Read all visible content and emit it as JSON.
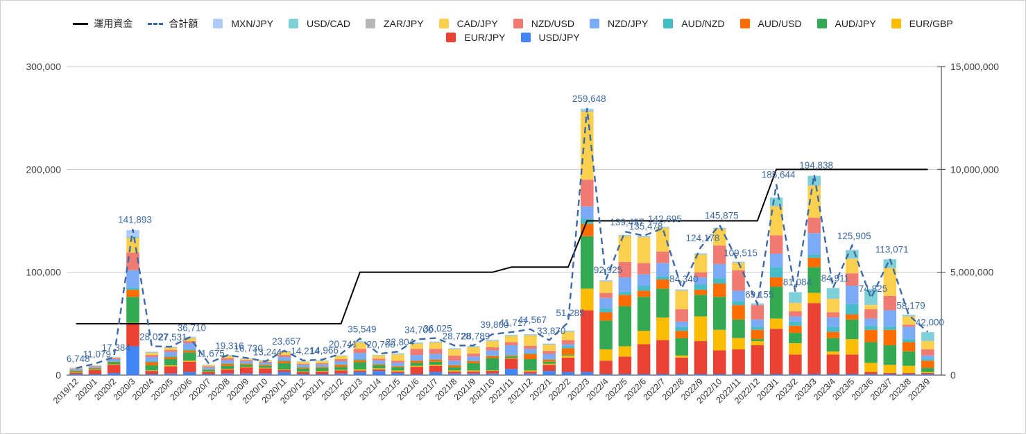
{
  "chart_data": {
    "type": "bar",
    "stacked": true,
    "title": "",
    "xlabel": "",
    "ylabel": "",
    "ylim": [
      0,
      300000
    ],
    "y2lim": [
      0,
      15000000
    ],
    "y_ticks": [
      "0",
      "100,000",
      "200,000",
      "300,000"
    ],
    "y2_ticks": [
      "0",
      "5,000,000",
      "10,000,000",
      "15,000,000"
    ],
    "grid": true,
    "legend_position": "top",
    "categories": [
      "2019/12",
      "2020/1",
      "2020/2",
      "2020/3",
      "2020/4",
      "2020/5",
      "2020/6",
      "2020/7",
      "2020/8",
      "2020/9",
      "2020/10",
      "2020/11",
      "2020/12",
      "2021/1",
      "2021/2",
      "2021/3",
      "2021/4",
      "2021/5",
      "2021/6",
      "2021/7",
      "2021/8",
      "2021/9",
      "2021/10",
      "2021/11",
      "2021/12",
      "2022/1",
      "2022/2",
      "2022/3",
      "2022/4",
      "2022/5",
      "2022/6",
      "2022/7",
      "2022/8",
      "2022/9",
      "2022/10",
      "2022/11",
      "2022/12",
      "2023/1",
      "2023/2",
      "2023/3",
      "2023/4",
      "2023/5",
      "2023/6",
      "2023/7",
      "2023/8",
      "2023/9"
    ],
    "series": [
      {
        "name": "USD/JPY",
        "color": "#4285f4",
        "values": [
          1000,
          1000,
          2000,
          28000,
          1000,
          1500,
          3000,
          1000,
          1500,
          1500,
          1500,
          3000,
          1000,
          1000,
          1500,
          3000,
          4000,
          2000,
          1000,
          3000,
          1500,
          1500,
          1500,
          6000,
          1500,
          4000,
          3000,
          3000,
          1000,
          1000,
          1000,
          1000,
          1000,
          1000,
          1000,
          1000,
          1000,
          1000,
          1000,
          1000,
          1000,
          1000,
          1000,
          1000,
          1000,
          1000
        ]
      },
      {
        "name": "EUR/JPY",
        "color": "#ea4335",
        "values": [
          1500,
          4000,
          8000,
          22000,
          3000,
          7000,
          10000,
          2000,
          4000,
          6000,
          5000,
          2000,
          2000,
          2500,
          3000,
          1500,
          1500,
          1500,
          7000,
          6000,
          2000,
          2000,
          2500,
          10000,
          2000,
          6000,
          14000,
          60000,
          13000,
          17000,
          29000,
          33000,
          16000,
          32000,
          23000,
          24000,
          28000,
          44000,
          19000,
          69000,
          19000,
          19000,
          2000,
          1000,
          1000,
          1000
        ]
      },
      {
        "name": "EUR/GBP",
        "color": "#fbbc04",
        "values": [
          500,
          500,
          500,
          1000,
          500,
          1000,
          1000,
          500,
          500,
          500,
          500,
          500,
          500,
          500,
          500,
          1000,
          1000,
          1000,
          1000,
          1000,
          1000,
          1000,
          500,
          500,
          1000,
          1000,
          2000,
          21000,
          11000,
          10000,
          13000,
          22000,
          2000,
          24000,
          20000,
          11000,
          4000,
          10000,
          11000,
          10000,
          3000,
          15000,
          9000,
          8000,
          7000,
          1000
        ]
      },
      {
        "name": "AUD/JPY",
        "color": "#34a853",
        "values": [
          1000,
          1000,
          2000,
          25000,
          5000,
          6000,
          8000,
          1500,
          3000,
          2000,
          2000,
          6000,
          3000,
          3000,
          3000,
          7000,
          3000,
          3000,
          3000,
          3000,
          3000,
          7000,
          12000,
          1500,
          11000,
          2000,
          1000,
          51000,
          28000,
          39000,
          33000,
          28000,
          17000,
          21000,
          32000,
          18000,
          2000,
          31000,
          10000,
          25000,
          13000,
          19000,
          20000,
          19000,
          14000,
          4000
        ]
      },
      {
        "name": "AUD/USD",
        "color": "#ff6d01",
        "values": [
          500,
          500,
          500,
          7000,
          3000,
          2000,
          2000,
          500,
          2000,
          1000,
          1000,
          2000,
          1000,
          1000,
          2000,
          2000,
          1000,
          1000,
          2000,
          2000,
          2000,
          2000,
          2000,
          1000,
          5000,
          2000,
          6000,
          12000,
          8000,
          11000,
          6000,
          9000,
          7000,
          5000,
          13000,
          14000,
          9000,
          9000,
          7000,
          9000,
          6000,
          5000,
          12000,
          15000,
          9000,
          7000
        ]
      },
      {
        "name": "AUD/NZD",
        "color": "#46bdc6",
        "values": [
          300,
          300,
          500,
          2000,
          1000,
          1000,
          1000,
          500,
          500,
          500,
          500,
          1000,
          500,
          500,
          500,
          1000,
          500,
          500,
          500,
          500,
          500,
          500,
          500,
          1000,
          1000,
          500,
          2000,
          5000,
          4000,
          3000,
          5000,
          3000,
          4000,
          5000,
          5000,
          4000,
          3000,
          10000,
          4000,
          3000,
          5000,
          10000,
          4000,
          3000,
          3000,
          2000
        ]
      },
      {
        "name": "NZD/JPY",
        "color": "#7baaf7",
        "values": [
          1000,
          1000,
          2000,
          17000,
          4000,
          4000,
          6000,
          1500,
          3000,
          2000,
          1500,
          3000,
          2000,
          2000,
          3000,
          6000,
          3000,
          3000,
          5000,
          5000,
          4000,
          4000,
          5000,
          9000,
          4000,
          5000,
          2000,
          12000,
          10000,
          14000,
          11000,
          13000,
          5000,
          7000,
          14000,
          10000,
          7000,
          13000,
          5000,
          21000,
          9000,
          18000,
          7000,
          16000,
          12000,
          3000
        ]
      },
      {
        "name": "NZD/USD",
        "color": "#f07b72",
        "values": [
          500,
          500,
          1000,
          17000,
          2000,
          2000,
          2000,
          1000,
          2000,
          1000,
          1000,
          2000,
          1000,
          1000,
          2000,
          4000,
          2000,
          2000,
          6000,
          5000,
          5000,
          3000,
          3000,
          3000,
          3000,
          3000,
          4000,
          26000,
          5000,
          15000,
          11000,
          11000,
          12000,
          5000,
          18000,
          20000,
          14000,
          18000,
          5000,
          15000,
          5000,
          12000,
          9000,
          14000,
          2000,
          6000
        ]
      },
      {
        "name": "CAD/JPY",
        "color": "#fcd04f",
        "values": [
          400,
          400,
          500,
          14000,
          2000,
          2000,
          3000,
          1000,
          2000,
          1000,
          1000,
          3000,
          2000,
          2000,
          3000,
          6000,
          3000,
          6000,
          5000,
          6000,
          6000,
          6000,
          6000,
          6000,
          10000,
          6000,
          8000,
          66000,
          11000,
          25000,
          25000,
          23000,
          18000,
          17000,
          16000,
          7000,
          0,
          28000,
          8000,
          31000,
          13000,
          14000,
          4000,
          27000,
          8000,
          8000
        ]
      },
      {
        "name": "ZAR/JPY",
        "color": "#b7b7b7",
        "values": [
          200,
          200,
          300,
          1000,
          500,
          500,
          500,
          300,
          500,
          300,
          300,
          500,
          300,
          300,
          300,
          500,
          300,
          500,
          500,
          500,
          500,
          500,
          500,
          500,
          500,
          500,
          500,
          1000,
          500,
          500,
          500,
          500,
          500,
          500,
          500,
          500,
          500,
          500,
          500,
          500,
          500,
          500,
          500,
          500,
          500,
          500
        ]
      },
      {
        "name": "USD/CAD",
        "color": "#7fd1d8",
        "values": [
          200,
          200,
          300,
          1000,
          500,
          500,
          500,
          300,
          500,
          300,
          300,
          500,
          300,
          300,
          300,
          500,
          300,
          500,
          500,
          500,
          500,
          500,
          500,
          500,
          500,
          500,
          500,
          1000,
          500,
          500,
          500,
          500,
          500,
          500,
          500,
          500,
          1000,
          8000,
          10000,
          9000,
          10000,
          8000,
          15000,
          8000,
          1000,
          8000
        ]
      },
      {
        "name": "MXN/JPY",
        "color": "#aecbfa",
        "values": [
          100,
          100,
          100,
          6000,
          200,
          200,
          300,
          100,
          200,
          200,
          100,
          200,
          100,
          100,
          100,
          500,
          100,
          300,
          300,
          200,
          100,
          100,
          200,
          200,
          300,
          200,
          300,
          1000,
          300,
          300,
          300,
          300,
          300,
          300,
          300,
          300,
          300,
          300,
          300,
          300,
          300,
          300,
          300,
          300,
          300,
          300
        ]
      }
    ],
    "total": {
      "name": "合計額",
      "color": "#3d6aa6",
      "values": [
        6748,
        11079,
        17384,
        141893,
        28027,
        27531,
        36710,
        11675,
        19316,
        16730,
        13244,
        23657,
        14214,
        14966,
        20741,
        35549,
        20700,
        22804,
        34700,
        36025,
        28728,
        28789,
        39800,
        41717,
        44567,
        33870,
        51285,
        259648,
        92925,
        139497,
        135478,
        142695,
        84340,
        124178,
        145875,
        109515,
        69155,
        185644,
        81084,
        194838,
        84911,
        125905,
        74825,
        113071,
        58179,
        42000
      ],
      "labels": [
        "6,748",
        "11,079",
        "17,384",
        "141,893",
        "28,027",
        "27,531",
        "36,710",
        "11,675",
        "19,316",
        "16,730",
        "13,244",
        "23,657",
        "14,214",
        "14,966",
        "20,741",
        "35,549",
        "20,700",
        "22,804",
        "34,700",
        "36,025",
        "28,728",
        "28,789",
        "39,800",
        "41,717",
        "44,567",
        "33,870",
        "51,285",
        "259,648",
        "92,925",
        "139,497",
        "135,478",
        "142,695",
        "84,340",
        "124,178",
        "145,875",
        "109,515",
        "69,155",
        "185,644",
        "81,084",
        "194,838",
        "84,911",
        "125,905",
        "74,825",
        "113,071",
        "58,179",
        "42,000"
      ]
    },
    "capital": {
      "name": "運用資金",
      "color": "#000000",
      "axis": "right",
      "values": [
        2500000,
        2500000,
        2500000,
        2500000,
        2500000,
        2500000,
        2500000,
        2500000,
        2500000,
        2500000,
        2500000,
        2500000,
        2500000,
        2500000,
        2500000,
        5000000,
        5000000,
        5000000,
        5000000,
        5000000,
        5000000,
        5000000,
        5000000,
        5250000,
        5250000,
        5250000,
        5250000,
        7500000,
        7500000,
        7500000,
        7500000,
        7500000,
        7500000,
        7500000,
        7500000,
        7500000,
        7500000,
        10000000,
        10000000,
        10000000,
        10000000,
        10000000,
        10000000,
        10000000,
        10000000,
        10000000
      ]
    }
  },
  "legend": {
    "row1": [
      {
        "label": "運用資金",
        "kind": "line",
        "color": "#000000"
      },
      {
        "label": "合計額",
        "kind": "dash",
        "color": "#3d6aa6"
      },
      {
        "label": "MXN/JPY",
        "kind": "box",
        "color": "#aecbfa"
      },
      {
        "label": "USD/CAD",
        "kind": "box",
        "color": "#7fd1d8"
      },
      {
        "label": "ZAR/JPY",
        "kind": "box",
        "color": "#b7b7b7"
      },
      {
        "label": "CAD/JPY",
        "kind": "box",
        "color": "#fcd04f"
      },
      {
        "label": "NZD/USD",
        "kind": "box",
        "color": "#f07b72"
      },
      {
        "label": "NZD/JPY",
        "kind": "box",
        "color": "#7baaf7"
      },
      {
        "label": "AUD/NZD",
        "kind": "box",
        "color": "#46bdc6"
      },
      {
        "label": "AUD/USD",
        "kind": "box",
        "color": "#ff6d01"
      },
      {
        "label": "AUD/JPY",
        "kind": "box",
        "color": "#34a853"
      },
      {
        "label": "EUR/GBP",
        "kind": "box",
        "color": "#fbbc04"
      }
    ],
    "row2": [
      {
        "label": "EUR/JPY",
        "kind": "box",
        "color": "#ea4335"
      },
      {
        "label": "USD/JPY",
        "kind": "box",
        "color": "#4285f4"
      }
    ]
  }
}
